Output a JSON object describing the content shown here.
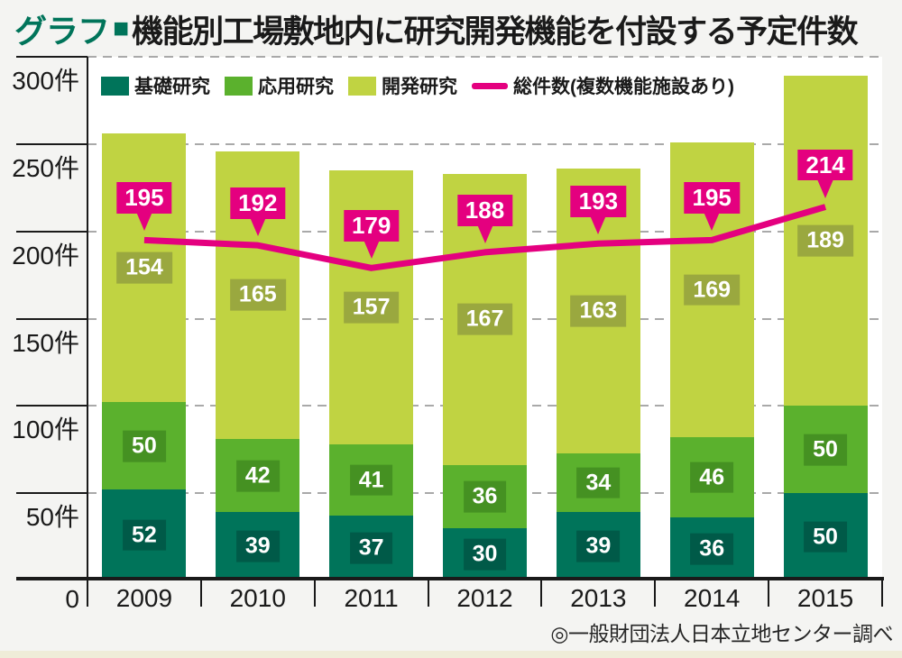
{
  "header": {
    "tag": "グラフ",
    "square": "■",
    "title": "機能別工場敷地内に研究開発機能を付設する予定件数"
  },
  "source": "◎一般財団法人日本立地センター調べ",
  "palette": {
    "basic_green": "#00745a",
    "applied_green": "#5bb12d",
    "development_green": "#c0d342",
    "total_pink": "#e4007f",
    "grid_gray": "#a9a9a9",
    "axis_black": "#1a1a1a",
    "background": "#f4f4f2",
    "plot_background": "#ffffff",
    "footer_strip": "#efecd8"
  },
  "chart_data": {
    "type": "bar",
    "subtype": "stacked-bar-with-line",
    "categories": [
      "2009",
      "2010",
      "2011",
      "2012",
      "2013",
      "2014",
      "2015"
    ],
    "unit": "件",
    "series": [
      {
        "name": "基礎研究",
        "values": [
          52,
          39,
          37,
          30,
          39,
          36,
          50
        ],
        "color": "#00745a",
        "badge_color": "#005a48"
      },
      {
        "name": "応用研究",
        "values": [
          50,
          42,
          41,
          36,
          34,
          46,
          50
        ],
        "color": "#5bb12d",
        "badge_color": "#459122"
      },
      {
        "name": "開発研究",
        "values": [
          154,
          165,
          157,
          167,
          163,
          169,
          189
        ],
        "color": "#c0d342",
        "badge_color": "#9aa83f"
      }
    ],
    "line_series": {
      "name": "総件数(複数機能施設あり)",
      "values": [
        195,
        192,
        179,
        188,
        193,
        195,
        214
      ],
      "color": "#e4007f"
    },
    "ylim": [
      0,
      300
    ],
    "y_ticks": [
      {
        "v": 0,
        "label": "0"
      },
      {
        "v": 50,
        "label": "50件"
      },
      {
        "v": 100,
        "label": "100件"
      },
      {
        "v": 150,
        "label": "150件"
      },
      {
        "v": 200,
        "label": "200件"
      },
      {
        "v": 250,
        "label": "250件"
      },
      {
        "v": 300,
        "label": "300件"
      }
    ],
    "grid": "dashed-horizontal",
    "legend_position": "top-left-inside"
  }
}
